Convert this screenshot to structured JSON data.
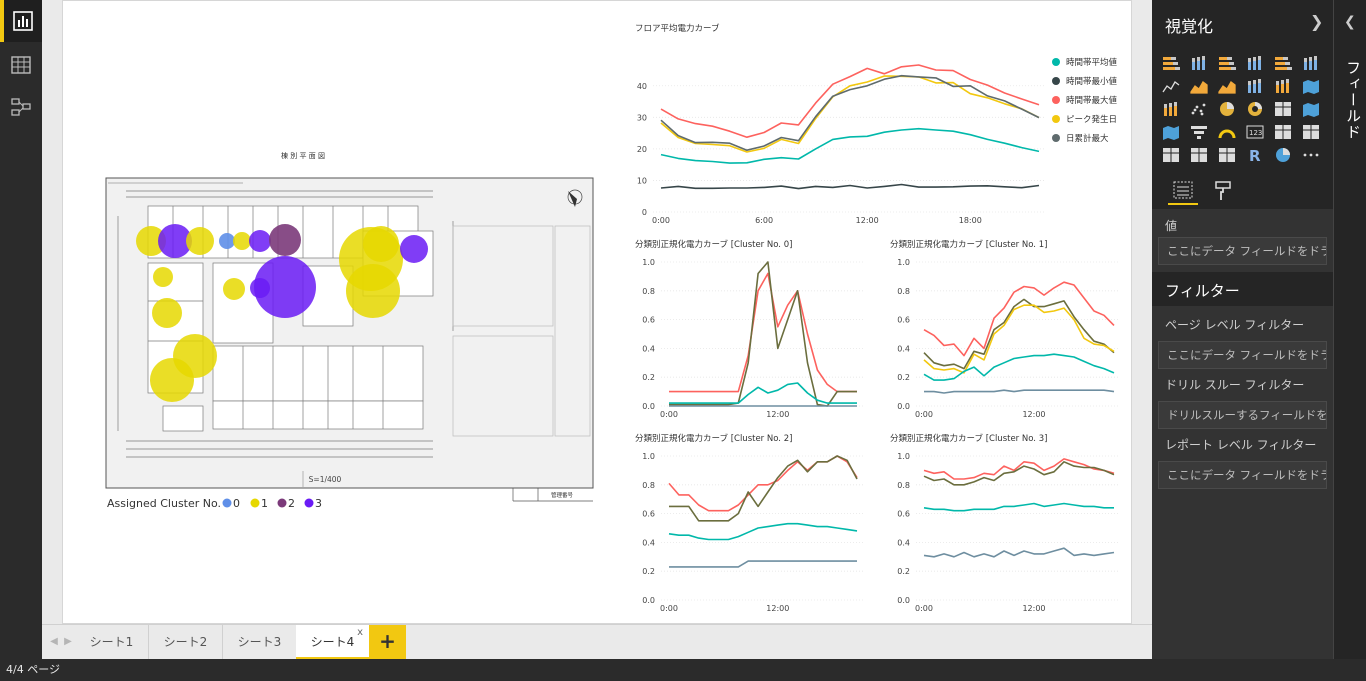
{
  "app": {
    "status": "4/4 ページ"
  },
  "nav": {
    "items": [
      "report-view",
      "data-view",
      "relationships-view"
    ]
  },
  "tabs": {
    "items": [
      "シート1",
      "シート2",
      "シート3",
      "シート4"
    ],
    "active_index": 3,
    "close_glyph": "x",
    "add_glyph": "+"
  },
  "viz_pane": {
    "title": "視覚化",
    "values_label": "値",
    "values_placeholder": "ここにデータ フィールドをドラッグ...",
    "filters_title": "フィルター",
    "page_filter_label": "ページ レベル フィルター",
    "page_filter_placeholder": "ここにデータ フィールドをドラッグ...",
    "drill_filter_label": "ドリル スルー フィルター",
    "drill_filter_placeholder": "ドリルスルーするフィールドをここに...",
    "report_filter_label": "レポート レベル フィルター",
    "report_filter_placeholder": "ここにデータ フィールドをドラッグ...",
    "icons": [
      "stacked-bar-icon",
      "stacked-column-icon",
      "clustered-bar-icon",
      "clustered-column-icon",
      "100-bar-icon",
      "100-column-icon",
      "line-icon",
      "area-icon",
      "stacked-area-icon",
      "line-column-icon",
      "line-clustered-icon",
      "ribbon-icon",
      "waterfall-icon",
      "scatter-icon",
      "pie-icon",
      "donut-icon",
      "treemap-icon",
      "map-icon",
      "filled-map-icon",
      "funnel-icon",
      "gauge-icon",
      "card-icon",
      "multirow-card-icon",
      "kpi-icon",
      "slicer-icon",
      "table-icon",
      "matrix-icon",
      "r-visual-icon",
      "globe-icon",
      "more-icon"
    ]
  },
  "fields_pane": {
    "label": "フィールド"
  },
  "colors": {
    "teal": "#01b8aa",
    "dark": "#374649",
    "red": "#fd625e",
    "yellow": "#f2c80f",
    "gray": "#5f6b6d",
    "blue": "#5f8fe8",
    "purple": "#7030a0",
    "violet": "#6a1bf5",
    "steel": "#6e8ea0",
    "olive": "#6b6e3e"
  },
  "floor_map": {
    "title": "棟 別 平 面 図",
    "scale": "S=1/400",
    "corner_note": "管理番号",
    "legend_title": "Assigned Cluster No.",
    "legend": [
      {
        "label": "0",
        "color": "#5f8fe8"
      },
      {
        "label": "1",
        "color": "#e6d800"
      },
      {
        "label": "2",
        "color": "#7b3a7a"
      },
      {
        "label": "3",
        "color": "#6a1bf5"
      }
    ]
  },
  "chart_data": [
    {
      "type": "line",
      "title": "フロア平均電力カーブ",
      "x_ticks": [
        "0:00",
        "6:00",
        "12:00",
        "18:00"
      ],
      "ylim": [
        0,
        45
      ],
      "y_ticks": [
        0,
        10,
        20,
        30,
        40
      ],
      "legend_position": "right",
      "series": [
        {
          "name": "時間帯平均値",
          "color": "#01b8aa",
          "values": [
            18.2,
            17.0,
            16.3,
            16.0,
            15.5,
            15.6,
            16.7,
            17.2,
            16.8,
            20.0,
            23.0,
            23.8,
            24.0,
            25.3,
            26.0,
            26.4,
            26.0,
            25.6,
            24.5,
            23.0,
            21.8,
            20.4,
            19.2
          ]
        },
        {
          "name": "時間帯最小値",
          "color": "#374649",
          "values": [
            7.6,
            8.1,
            7.5,
            7.5,
            7.6,
            7.6,
            7.8,
            8.2,
            7.4,
            8.1,
            7.8,
            8.4,
            7.6,
            8.1,
            8.7,
            7.9,
            7.9,
            8.0,
            8.2,
            8.3,
            8.0,
            7.7,
            8.4
          ]
        },
        {
          "name": "時間帯最大値",
          "color": "#fd625e",
          "values": [
            32.6,
            29.5,
            28.0,
            27.2,
            25.6,
            23.7,
            25.2,
            28.2,
            27.6,
            34.5,
            40.5,
            42.9,
            45.5,
            43.8,
            46.0,
            46.6,
            45.0,
            44.8,
            42.0,
            40.2,
            37.7,
            35.8,
            34.0
          ]
        },
        {
          "name": "ピーク発生日",
          "color": "#f2c80f",
          "values": [
            28.2,
            23.6,
            21.7,
            21.4,
            21.0,
            19.0,
            20.2,
            23.0,
            21.7,
            29.6,
            36.5,
            40.0,
            41.2,
            43.1,
            43.0,
            42.8,
            40.9,
            41.0,
            37.5,
            36.2,
            34.3,
            32.7,
            29.9
          ]
        },
        {
          "name": "日累計最大",
          "color": "#5f6b6d",
          "values": [
            29.1,
            24.2,
            22.0,
            22.1,
            21.8,
            19.6,
            20.9,
            23.6,
            22.6,
            30.2,
            36.7,
            38.8,
            40.0,
            42.1,
            43.2,
            42.8,
            42.5,
            39.8,
            40.0,
            36.8,
            35.2,
            32.6,
            29.9
          ]
        }
      ]
    },
    {
      "type": "line",
      "title": "分類別正規化電力カーブ [Cluster No. 0]",
      "x_ticks": [
        "0:00",
        "12:00"
      ],
      "ylim": [
        0,
        1
      ],
      "y_ticks": [
        0.0,
        0.2,
        0.4,
        0.6,
        0.8,
        1.0
      ],
      "series": [
        {
          "color": "#fd625e",
          "values": [
            0.1,
            0.1,
            0.1,
            0.1,
            0.1,
            0.1,
            0.1,
            0.1,
            0.35,
            0.8,
            0.92,
            0.55,
            0.7,
            0.8,
            0.5,
            0.25,
            0.15,
            0.1,
            0.1,
            0.1
          ]
        },
        {
          "color": "#6b6e3e",
          "values": [
            0.01,
            0.01,
            0.01,
            0.01,
            0.01,
            0.01,
            0.01,
            0.02,
            0.3,
            0.92,
            1.0,
            0.4,
            0.6,
            0.8,
            0.3,
            0.01,
            0.0,
            0.1,
            0.1,
            0.1
          ]
        },
        {
          "color": "#01b8aa",
          "values": [
            0.02,
            0.02,
            0.02,
            0.02,
            0.02,
            0.02,
            0.02,
            0.02,
            0.08,
            0.13,
            0.09,
            0.11,
            0.15,
            0.16,
            0.09,
            0.04,
            0.02,
            0.02,
            0.02,
            0.02
          ]
        },
        {
          "color": "#6e8ea0",
          "values": [
            0.0,
            0.0,
            0.0,
            0.0,
            0.0,
            0.0,
            0.0,
            0.0,
            0.0,
            0.0,
            0.0,
            0.0,
            0.0,
            0.0,
            0.0,
            0.0,
            0.0,
            0.0,
            0.0,
            0.0
          ]
        }
      ]
    },
    {
      "type": "line",
      "title": "分類別正規化電力カーブ [Cluster No. 1]",
      "x_ticks": [
        "0:00",
        "12:00"
      ],
      "ylim": [
        0,
        1
      ],
      "y_ticks": [
        0.0,
        0.2,
        0.4,
        0.6,
        0.8,
        1.0
      ],
      "series": [
        {
          "color": "#fd625e",
          "values": [
            0.53,
            0.49,
            0.42,
            0.43,
            0.35,
            0.47,
            0.4,
            0.61,
            0.68,
            0.79,
            0.83,
            0.82,
            0.77,
            0.82,
            0.86,
            0.84,
            0.75,
            0.66,
            0.63,
            0.56
          ]
        },
        {
          "color": "#6b6e3e",
          "values": [
            0.37,
            0.3,
            0.28,
            0.29,
            0.26,
            0.38,
            0.36,
            0.53,
            0.58,
            0.69,
            0.74,
            0.69,
            0.69,
            0.71,
            0.73,
            0.62,
            0.53,
            0.45,
            0.43,
            0.37
          ]
        },
        {
          "color": "#f2c80f",
          "values": [
            0.32,
            0.26,
            0.25,
            0.26,
            0.23,
            0.36,
            0.32,
            0.5,
            0.56,
            0.67,
            0.7,
            0.7,
            0.65,
            0.66,
            0.68,
            0.6,
            0.47,
            0.43,
            0.42,
            0.38
          ]
        },
        {
          "color": "#01b8aa",
          "values": [
            0.22,
            0.18,
            0.18,
            0.19,
            0.24,
            0.27,
            0.21,
            0.27,
            0.3,
            0.33,
            0.34,
            0.35,
            0.35,
            0.36,
            0.35,
            0.34,
            0.31,
            0.28,
            0.26,
            0.23
          ]
        },
        {
          "color": "#6e8ea0",
          "values": [
            0.1,
            0.1,
            0.09,
            0.1,
            0.1,
            0.1,
            0.1,
            0.1,
            0.11,
            0.1,
            0.11,
            0.11,
            0.11,
            0.11,
            0.11,
            0.11,
            0.11,
            0.11,
            0.11,
            0.1
          ]
        }
      ]
    },
    {
      "type": "line",
      "title": "分類別正規化電力カーブ [Cluster No. 2]",
      "x_ticks": [
        "0:00",
        "12:00"
      ],
      "ylim": [
        0,
        1
      ],
      "y_ticks": [
        0.0,
        0.2,
        0.4,
        0.6,
        0.8,
        1.0
      ],
      "series": [
        {
          "color": "#fd625e",
          "values": [
            0.81,
            0.73,
            0.73,
            0.66,
            0.62,
            0.62,
            0.62,
            0.66,
            0.73,
            0.8,
            0.8,
            0.83,
            0.9,
            0.96,
            0.9,
            0.96,
            0.96,
            1.0,
            0.96,
            0.85
          ]
        },
        {
          "color": "#6b6e3e",
          "values": [
            0.65,
            0.65,
            0.65,
            0.55,
            0.55,
            0.55,
            0.55,
            0.6,
            0.75,
            0.65,
            0.75,
            0.85,
            0.93,
            0.97,
            0.89,
            0.96,
            0.96,
            1.0,
            0.97,
            0.84
          ]
        },
        {
          "color": "#01b8aa",
          "values": [
            0.46,
            0.45,
            0.45,
            0.43,
            0.42,
            0.42,
            0.42,
            0.44,
            0.47,
            0.5,
            0.51,
            0.52,
            0.53,
            0.53,
            0.52,
            0.51,
            0.51,
            0.5,
            0.49,
            0.48
          ]
        },
        {
          "color": "#6e8ea0",
          "values": [
            0.23,
            0.23,
            0.23,
            0.23,
            0.23,
            0.23,
            0.23,
            0.23,
            0.27,
            0.27,
            0.27,
            0.27,
            0.27,
            0.27,
            0.27,
            0.27,
            0.27,
            0.27,
            0.27,
            0.27
          ]
        }
      ]
    },
    {
      "type": "line",
      "title": "分類別正規化電力カーブ [Cluster No. 3]",
      "x_ticks": [
        "0:00",
        "12:00"
      ],
      "ylim": [
        0,
        1
      ],
      "y_ticks": [
        0.0,
        0.2,
        0.4,
        0.6,
        0.8,
        1.0
      ],
      "series": [
        {
          "color": "#fd625e",
          "values": [
            0.9,
            0.88,
            0.89,
            0.84,
            0.84,
            0.85,
            0.88,
            0.87,
            0.93,
            0.9,
            0.96,
            0.95,
            0.9,
            0.93,
            0.98,
            0.96,
            0.94,
            0.91,
            0.9,
            0.88
          ]
        },
        {
          "color": "#6b6e3e",
          "values": [
            0.86,
            0.83,
            0.84,
            0.8,
            0.8,
            0.82,
            0.85,
            0.83,
            0.88,
            0.89,
            0.93,
            0.91,
            0.87,
            0.89,
            0.96,
            0.93,
            0.92,
            0.92,
            0.9,
            0.87
          ]
        },
        {
          "color": "#01b8aa",
          "values": [
            0.64,
            0.63,
            0.63,
            0.62,
            0.62,
            0.63,
            0.63,
            0.63,
            0.65,
            0.65,
            0.66,
            0.67,
            0.65,
            0.66,
            0.67,
            0.66,
            0.65,
            0.65,
            0.64,
            0.64
          ]
        },
        {
          "color": "#6e8ea0",
          "values": [
            0.31,
            0.3,
            0.32,
            0.3,
            0.33,
            0.3,
            0.32,
            0.3,
            0.34,
            0.31,
            0.34,
            0.32,
            0.32,
            0.34,
            0.36,
            0.31,
            0.32,
            0.31,
            0.32,
            0.33
          ]
        }
      ]
    }
  ]
}
